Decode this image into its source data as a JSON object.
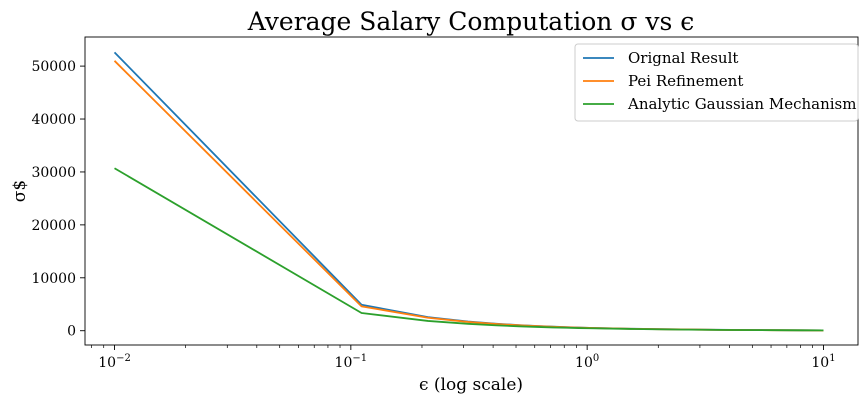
{
  "chart_data": {
    "type": "line",
    "title": "Average Salary Computation σ vs ϵ",
    "xlabel": "ϵ (log scale)",
    "ylabel": "σ$",
    "xscale": "log",
    "xlim": [
      0.0075,
      14
    ],
    "ylim": [
      -2700,
      55500
    ],
    "grid": false,
    "legend_position": "top-right",
    "xticks": [
      {
        "value": 0.01,
        "mantissa": "10",
        "exponent": "−2"
      },
      {
        "value": 0.1,
        "mantissa": "10",
        "exponent": "−1"
      },
      {
        "value": 1,
        "mantissa": "10",
        "exponent": "0"
      },
      {
        "value": 10,
        "mantissa": "10",
        "exponent": "1"
      }
    ],
    "yticks": [
      {
        "value": 0,
        "label": "0"
      },
      {
        "value": 10000,
        "label": "10000"
      },
      {
        "value": 20000,
        "label": "20000"
      },
      {
        "value": 30000,
        "label": "30000"
      },
      {
        "value": 40000,
        "label": "40000"
      },
      {
        "value": 50000,
        "label": "50000"
      }
    ],
    "x": [
      0.01,
      0.111,
      0.212,
      0.313,
      0.414,
      0.515,
      0.616,
      0.717,
      0.818,
      0.919,
      1.02,
      1.53,
      2.04,
      3.06,
      4.08,
      6.12,
      8.16,
      10.0
    ],
    "series": [
      {
        "name": "Orignal Result",
        "color": "#1f77b4",
        "values": [
          52600,
          4900,
          2570,
          1740,
          1320,
          1060,
          890,
          770,
          680,
          610,
          540,
          370,
          300,
          200,
          150,
          110,
          80,
          60
        ]
      },
      {
        "name": "Pei Refinement",
        "color": "#ff7f0e",
        "values": [
          51000,
          4600,
          2450,
          1660,
          1260,
          1020,
          850,
          740,
          650,
          580,
          520,
          360,
          290,
          190,
          140,
          100,
          75,
          55
        ]
      },
      {
        "name": "Analytic Gaussian Mechanism",
        "color": "#2ca02c",
        "values": [
          30700,
          3350,
          1850,
          1300,
          1010,
          830,
          710,
          620,
          560,
          500,
          460,
          330,
          260,
          180,
          140,
          100,
          80,
          60
        ]
      }
    ]
  }
}
